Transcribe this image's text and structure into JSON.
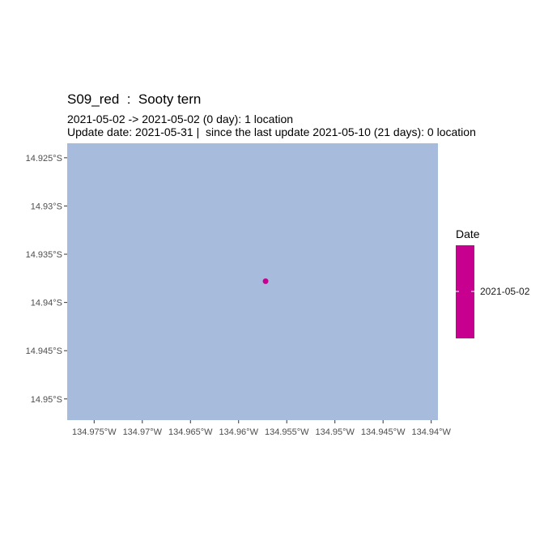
{
  "title": "S09_red  :  Sooty tern",
  "subtitle_line1": "2021-05-02 -> 2021-05-02 (0 day): 1 location",
  "subtitle_line2": "Update date: 2021-05-31 |  since the last update 2021-05-10 (21 days): 0 location",
  "colors": {
    "panel": "#a7bcdc",
    "point": "#c8008f",
    "legend_bar": "#c8008f"
  },
  "chart_data": {
    "type": "scatter",
    "x_ticks": [
      {
        "value": -134.975,
        "label": "134.975°W"
      },
      {
        "value": -134.97,
        "label": "134.97°W"
      },
      {
        "value": -134.965,
        "label": "134.965°W"
      },
      {
        "value": -134.96,
        "label": "134.96°W"
      },
      {
        "value": -134.955,
        "label": "134.955°W"
      },
      {
        "value": -134.95,
        "label": "134.95°W"
      },
      {
        "value": -134.945,
        "label": "134.945°W"
      },
      {
        "value": -134.94,
        "label": "134.94°W"
      }
    ],
    "y_ticks": [
      {
        "value": -14.925,
        "label": "14.925°S"
      },
      {
        "value": -14.93,
        "label": "14.93°S"
      },
      {
        "value": -14.935,
        "label": "14.935°S"
      },
      {
        "value": -14.94,
        "label": "14.94°S"
      },
      {
        "value": -14.945,
        "label": "14.945°S"
      },
      {
        "value": -14.95,
        "label": "14.95°S"
      }
    ],
    "xlim": [
      -134.9778,
      -134.9393
    ],
    "ylim": [
      -14.9522,
      -14.9235
    ],
    "points": [
      {
        "lon": -134.9572,
        "lat": -14.9378,
        "date": "2021-05-02"
      }
    ],
    "legend": {
      "title": "Date",
      "labels": [
        "2021-05-02"
      ],
      "placement": "right"
    }
  }
}
